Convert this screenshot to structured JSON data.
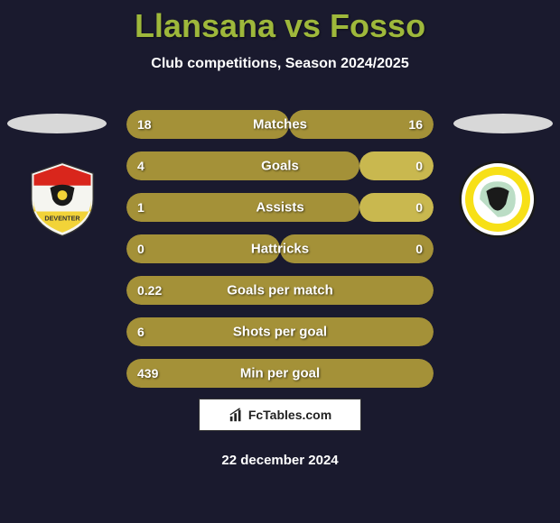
{
  "title": "Llansana vs Fosso",
  "subtitle": "Club competitions, Season 2024/2025",
  "footer_brand": "FcTables.com",
  "footer_date": "22 december 2024",
  "colors": {
    "accent": "#a49138",
    "accent_alt": "#b09c3c",
    "title": "#9eb83b",
    "background": "#1a1a2e"
  },
  "badges": {
    "left": {
      "name": "Go Ahead Eagles",
      "shield_bg": "#f5f5f0",
      "shield_accent_top": "#d9261c",
      "shield_accent_bottom": "#f2d338",
      "eagle_color": "#1a1a1a"
    },
    "right": {
      "name": "Fortuna Sittard",
      "shield_bg": "#ffffff",
      "shield_accent": "#f7e017",
      "eagle_color": "#1a1a1a",
      "green": "#1e8e3e"
    }
  },
  "stats": [
    {
      "label": "Matches",
      "left_value": "18",
      "right_value": "16",
      "left_pct": 53,
      "right_pct": 47,
      "left_color": "#a49138",
      "right_color": "#a49138"
    },
    {
      "label": "Goals",
      "left_value": "4",
      "right_value": "0",
      "left_pct": 76,
      "right_pct": 24,
      "left_color": "#a49138",
      "right_color": "#c9b84f"
    },
    {
      "label": "Assists",
      "left_value": "1",
      "right_value": "0",
      "left_pct": 76,
      "right_pct": 24,
      "left_color": "#a49138",
      "right_color": "#c9b84f"
    },
    {
      "label": "Hattricks",
      "left_value": "0",
      "right_value": "0",
      "left_pct": 50,
      "right_pct": 50,
      "left_color": "#a49138",
      "right_color": "#a49138"
    },
    {
      "label": "Goals per match",
      "left_value": "0.22",
      "right_value": "",
      "left_pct": 100,
      "right_pct": 0,
      "left_color": "#a49138",
      "right_color": "#a49138"
    },
    {
      "label": "Shots per goal",
      "left_value": "6",
      "right_value": "",
      "left_pct": 100,
      "right_pct": 0,
      "left_color": "#a49138",
      "right_color": "#a49138"
    },
    {
      "label": "Min per goal",
      "left_value": "439",
      "right_value": "",
      "left_pct": 100,
      "right_pct": 0,
      "left_color": "#a49138",
      "right_color": "#a49138"
    }
  ]
}
